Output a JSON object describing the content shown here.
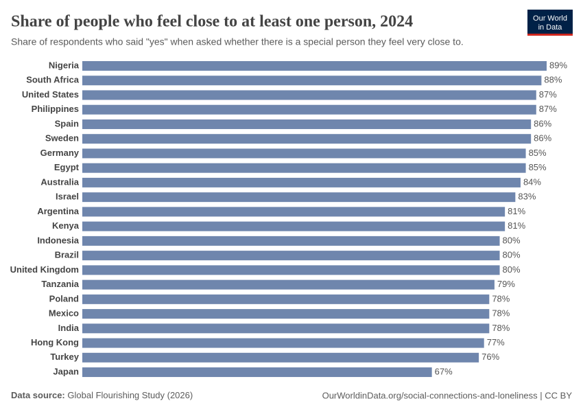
{
  "chart_data": {
    "type": "bar",
    "orientation": "horizontal",
    "title": "Share of people who feel close to at least one person, 2024",
    "subtitle": "Share of respondents who said \"yes\" when asked whether there is a special person they feel very close to.",
    "categories": [
      "Nigeria",
      "South Africa",
      "United States",
      "Philippines",
      "Spain",
      "Sweden",
      "Germany",
      "Egypt",
      "Australia",
      "Israel",
      "Argentina",
      "Kenya",
      "Indonesia",
      "Brazil",
      "United Kingdom",
      "Tanzania",
      "Poland",
      "Mexico",
      "India",
      "Hong Kong",
      "Turkey",
      "Japan"
    ],
    "values": [
      89,
      88,
      87,
      87,
      86,
      86,
      85,
      85,
      84,
      83,
      81,
      81,
      80,
      80,
      80,
      79,
      78,
      78,
      78,
      77,
      76,
      67
    ],
    "value_labels": [
      "89%",
      "88%",
      "87%",
      "87%",
      "86%",
      "86%",
      "85%",
      "85%",
      "84%",
      "83%",
      "81%",
      "81%",
      "80%",
      "80%",
      "80%",
      "79%",
      "78%",
      "78%",
      "78%",
      "77%",
      "76%",
      "67%"
    ],
    "color": "#6f86ad"
  },
  "footer": {
    "source_label": "Data source:",
    "source": "Global Flourishing Study (2026)",
    "url": "OurWorldinData.org/social-connections-and-loneliness | CC BY"
  },
  "logo": {
    "line1": "Our World",
    "line2": "in Data"
  }
}
